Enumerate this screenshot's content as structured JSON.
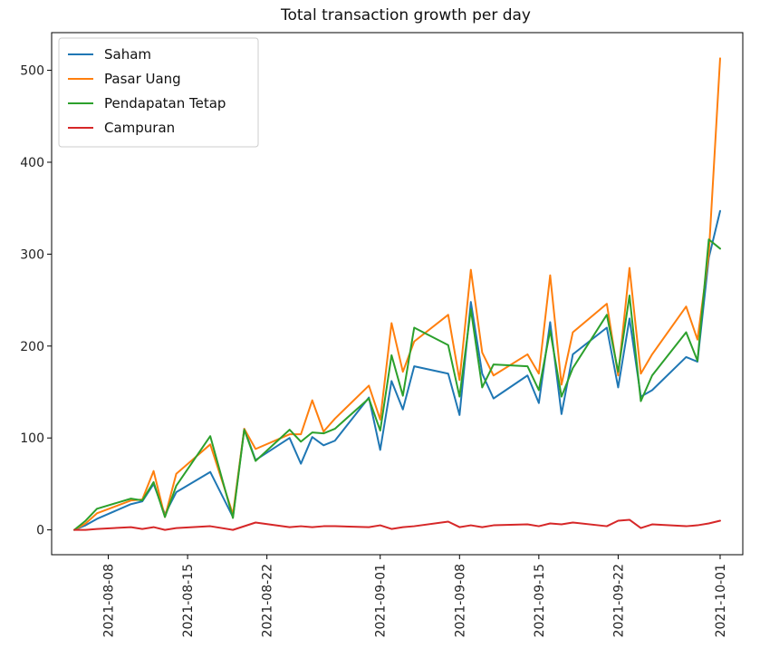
{
  "chart_data": {
    "type": "line",
    "title": "Total transaction growth per day",
    "xlabel": "",
    "ylabel": "",
    "ylim": [
      -27,
      541
    ],
    "xlim": [
      "2021-08-03",
      "2021-10-03"
    ],
    "yticks": [
      0,
      100,
      200,
      300,
      400,
      500
    ],
    "xticks": [
      "2021-08-08",
      "2021-08-15",
      "2021-08-22",
      "2021-09-01",
      "2021-09-08",
      "2021-09-15",
      "2021-09-22",
      "2021-10-01"
    ],
    "legend_position": "top-left",
    "grid": false,
    "series": [
      {
        "name": "Saham",
        "color": "#1f77b4",
        "points": [
          [
            "2021-08-05",
            0
          ],
          [
            "2021-08-06",
            5
          ],
          [
            "2021-08-07",
            12
          ],
          [
            "2021-08-10",
            28
          ],
          [
            "2021-08-11",
            31
          ],
          [
            "2021-08-12",
            50
          ],
          [
            "2021-08-13",
            17
          ],
          [
            "2021-08-14",
            41
          ],
          [
            "2021-08-17",
            63
          ],
          [
            "2021-08-19",
            14
          ],
          [
            "2021-08-20",
            110
          ],
          [
            "2021-08-21",
            76
          ],
          [
            "2021-08-24",
            100
          ],
          [
            "2021-08-25",
            72
          ],
          [
            "2021-08-26",
            101
          ],
          [
            "2021-08-27",
            92
          ],
          [
            "2021-08-28",
            97
          ],
          [
            "2021-08-31",
            144
          ],
          [
            "2021-09-01",
            87
          ],
          [
            "2021-09-02",
            162
          ],
          [
            "2021-09-03",
            131
          ],
          [
            "2021-09-04",
            178
          ],
          [
            "2021-09-07",
            170
          ],
          [
            "2021-09-08",
            125
          ],
          [
            "2021-09-09",
            248
          ],
          [
            "2021-09-10",
            170
          ],
          [
            "2021-09-11",
            143
          ],
          [
            "2021-09-14",
            168
          ],
          [
            "2021-09-15",
            138
          ],
          [
            "2021-09-16",
            226
          ],
          [
            "2021-09-17",
            126
          ],
          [
            "2021-09-18",
            191
          ],
          [
            "2021-09-21",
            220
          ],
          [
            "2021-09-22",
            155
          ],
          [
            "2021-09-23",
            230
          ],
          [
            "2021-09-24",
            145
          ],
          [
            "2021-09-25",
            152
          ],
          [
            "2021-09-28",
            188
          ],
          [
            "2021-09-29",
            183
          ],
          [
            "2021-09-30",
            296
          ],
          [
            "2021-10-01",
            347
          ]
        ]
      },
      {
        "name": "Pasar Uang",
        "color": "#ff7f0e",
        "points": [
          [
            "2021-08-05",
            0
          ],
          [
            "2021-08-06",
            7
          ],
          [
            "2021-08-07",
            18
          ],
          [
            "2021-08-10",
            32
          ],
          [
            "2021-08-11",
            33
          ],
          [
            "2021-08-12",
            64
          ],
          [
            "2021-08-13",
            14
          ],
          [
            "2021-08-14",
            61
          ],
          [
            "2021-08-17",
            93
          ],
          [
            "2021-08-19",
            17
          ],
          [
            "2021-08-20",
            110
          ],
          [
            "2021-08-21",
            88
          ],
          [
            "2021-08-24",
            104
          ],
          [
            "2021-08-25",
            104
          ],
          [
            "2021-08-26",
            141
          ],
          [
            "2021-08-27",
            107
          ],
          [
            "2021-08-28",
            121
          ],
          [
            "2021-08-31",
            157
          ],
          [
            "2021-09-01",
            120
          ],
          [
            "2021-09-02",
            225
          ],
          [
            "2021-09-03",
            172
          ],
          [
            "2021-09-04",
            205
          ],
          [
            "2021-09-07",
            234
          ],
          [
            "2021-09-08",
            163
          ],
          [
            "2021-09-09",
            283
          ],
          [
            "2021-09-10",
            193
          ],
          [
            "2021-09-11",
            168
          ],
          [
            "2021-09-14",
            191
          ],
          [
            "2021-09-15",
            170
          ],
          [
            "2021-09-16",
            277
          ],
          [
            "2021-09-17",
            158
          ],
          [
            "2021-09-18",
            215
          ],
          [
            "2021-09-21",
            246
          ],
          [
            "2021-09-22",
            168
          ],
          [
            "2021-09-23",
            285
          ],
          [
            "2021-09-24",
            170
          ],
          [
            "2021-09-25",
            191
          ],
          [
            "2021-09-28",
            243
          ],
          [
            "2021-09-29",
            207
          ],
          [
            "2021-09-30",
            300
          ],
          [
            "2021-10-01",
            513
          ]
        ]
      },
      {
        "name": "Pendapatan Tetap",
        "color": "#2ca02c",
        "points": [
          [
            "2021-08-05",
            0
          ],
          [
            "2021-08-06",
            10
          ],
          [
            "2021-08-07",
            23
          ],
          [
            "2021-08-10",
            34
          ],
          [
            "2021-08-11",
            32
          ],
          [
            "2021-08-12",
            52
          ],
          [
            "2021-08-13",
            14
          ],
          [
            "2021-08-14",
            48
          ],
          [
            "2021-08-17",
            102
          ],
          [
            "2021-08-19",
            13
          ],
          [
            "2021-08-20",
            109
          ],
          [
            "2021-08-21",
            75
          ],
          [
            "2021-08-24",
            109
          ],
          [
            "2021-08-25",
            96
          ],
          [
            "2021-08-26",
            106
          ],
          [
            "2021-08-27",
            105
          ],
          [
            "2021-08-28",
            110
          ],
          [
            "2021-08-31",
            143
          ],
          [
            "2021-09-01",
            108
          ],
          [
            "2021-09-02",
            190
          ],
          [
            "2021-09-03",
            146
          ],
          [
            "2021-09-04",
            220
          ],
          [
            "2021-09-07",
            201
          ],
          [
            "2021-09-08",
            145
          ],
          [
            "2021-09-09",
            240
          ],
          [
            "2021-09-10",
            155
          ],
          [
            "2021-09-11",
            180
          ],
          [
            "2021-09-14",
            178
          ],
          [
            "2021-09-15",
            152
          ],
          [
            "2021-09-16",
            217
          ],
          [
            "2021-09-17",
            145
          ],
          [
            "2021-09-18",
            176
          ],
          [
            "2021-09-21",
            234
          ],
          [
            "2021-09-22",
            172
          ],
          [
            "2021-09-23",
            255
          ],
          [
            "2021-09-24",
            140
          ],
          [
            "2021-09-25",
            168
          ],
          [
            "2021-09-28",
            215
          ],
          [
            "2021-09-29",
            184
          ],
          [
            "2021-09-30",
            316
          ],
          [
            "2021-10-01",
            306
          ]
        ]
      },
      {
        "name": "Campuran",
        "color": "#d62728",
        "points": [
          [
            "2021-08-05",
            0
          ],
          [
            "2021-08-06",
            0
          ],
          [
            "2021-08-07",
            1
          ],
          [
            "2021-08-10",
            3
          ],
          [
            "2021-08-11",
            1
          ],
          [
            "2021-08-12",
            3
          ],
          [
            "2021-08-13",
            0
          ],
          [
            "2021-08-14",
            2
          ],
          [
            "2021-08-17",
            4
          ],
          [
            "2021-08-19",
            0
          ],
          [
            "2021-08-21",
            8
          ],
          [
            "2021-08-24",
            3
          ],
          [
            "2021-08-25",
            4
          ],
          [
            "2021-08-26",
            3
          ],
          [
            "2021-08-27",
            4
          ],
          [
            "2021-08-28",
            4
          ],
          [
            "2021-08-31",
            3
          ],
          [
            "2021-09-01",
            5
          ],
          [
            "2021-09-02",
            1
          ],
          [
            "2021-09-03",
            3
          ],
          [
            "2021-09-04",
            4
          ],
          [
            "2021-09-07",
            9
          ],
          [
            "2021-09-08",
            3
          ],
          [
            "2021-09-09",
            5
          ],
          [
            "2021-09-10",
            3
          ],
          [
            "2021-09-11",
            5
          ],
          [
            "2021-09-14",
            6
          ],
          [
            "2021-09-15",
            4
          ],
          [
            "2021-09-16",
            7
          ],
          [
            "2021-09-17",
            6
          ],
          [
            "2021-09-18",
            8
          ],
          [
            "2021-09-21",
            4
          ],
          [
            "2021-09-22",
            10
          ],
          [
            "2021-09-23",
            11
          ],
          [
            "2021-09-24",
            2
          ],
          [
            "2021-09-25",
            6
          ],
          [
            "2021-09-28",
            4
          ],
          [
            "2021-09-29",
            5
          ],
          [
            "2021-09-30",
            7
          ],
          [
            "2021-10-01",
            10
          ]
        ]
      }
    ]
  }
}
